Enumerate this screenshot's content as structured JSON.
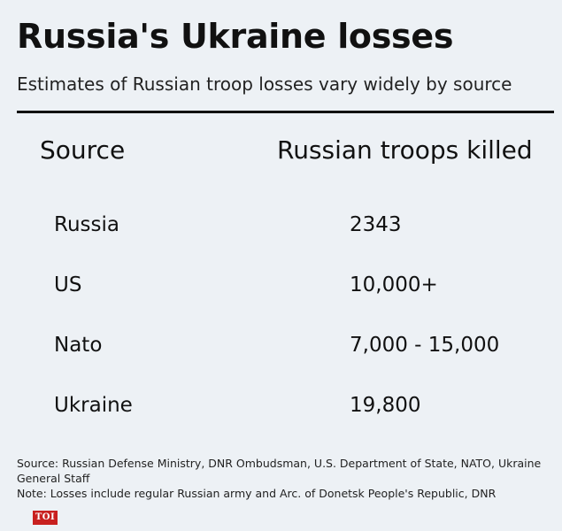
{
  "header": {
    "title": "Russia's Ukraine losses",
    "subtitle": "Estimates of Russian troop losses vary widely by source"
  },
  "chart_data": {
    "type": "table",
    "columns": [
      "Source",
      "Russian troops killed"
    ],
    "rows": [
      {
        "source": "Russia",
        "killed": "2343"
      },
      {
        "source": "US",
        "killed": "10,000+"
      },
      {
        "source": "Nato",
        "killed": "7,000 - 15,000"
      },
      {
        "source": "Ukraine",
        "killed": "19,800"
      }
    ]
  },
  "footer": {
    "source": "Source: Russian Defense Ministry, DNR Ombudsman, U.S. Department of State, NATO, Ukraine General Staff",
    "note": "Note: Losses include regular Russian army and Arc. of Donetsk People's Republic, DNR",
    "logo": "TOI"
  },
  "colors": {
    "background": "#edf1f5",
    "text": "#111111",
    "logo": "#c8201f"
  }
}
